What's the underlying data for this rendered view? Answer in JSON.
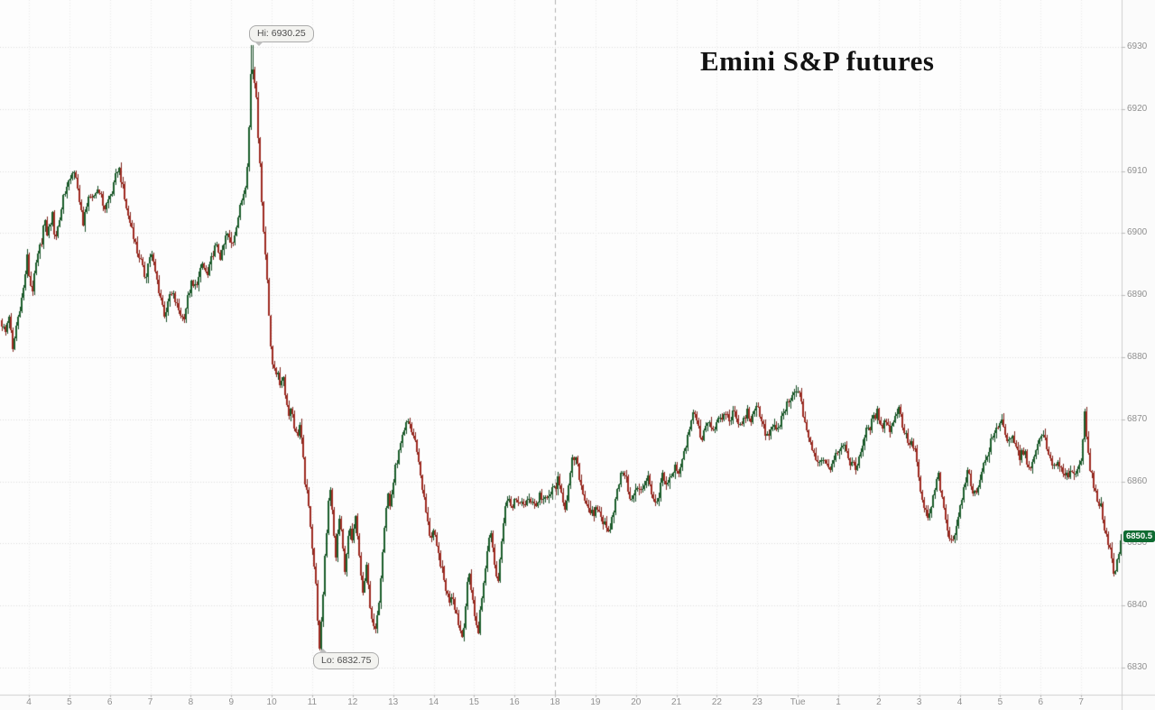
{
  "title": "Emini S&P futures",
  "annotations": {
    "high_label": "Hi: 6930.25",
    "low_label": "Lo: 6832.75",
    "last_price": "6850.5"
  },
  "colors": {
    "up": "#1c5e2c",
    "up_wick": "#174d25",
    "down": "#9e2b22",
    "down_wick": "#7e241c",
    "grid_h": "#dedede",
    "grid_v": "#eaeaea",
    "session_line": "#b3b3b3",
    "axis_line": "#cfcfcf",
    "axis_text": "#8f8f8f",
    "strip_bg": "#fbfbfb",
    "background": "#fdfdfd",
    "badge_bg": "#0e6b31",
    "badge_text": "#ffffff"
  },
  "chart_data": {
    "type": "candlestick",
    "instrument": "Emini S&P futures",
    "title": "Emini S&P futures",
    "high": 6930.25,
    "low": 6832.75,
    "last": 6850.5,
    "ylim": [
      6825,
      6934
    ],
    "y_ticks": [
      6930,
      6920,
      6910,
      6900,
      6890,
      6880,
      6870,
      6860,
      6850,
      6840,
      6830
    ],
    "x_labels": [
      "4",
      "5",
      "6",
      "7",
      "8",
      "9",
      "10",
      "11",
      "12",
      "13",
      "14",
      "15",
      "16",
      "18",
      "19",
      "20",
      "21",
      "22",
      "23",
      "Tue",
      "1",
      "2",
      "3",
      "4",
      "5",
      "6",
      "7"
    ],
    "x_axis_note": "hours; 17:00 skipped (futures session break); dashed line at 18:00 session open; Tue = midnight",
    "grid": "dotted, horizontal every 10 pts, vertical every hour",
    "legend": "none",
    "x_unit_of_price_path": "screen_px",
    "price_path": [
      [
        0,
        6886
      ],
      [
        6,
        6884
      ],
      [
        10,
        6887
      ],
      [
        14,
        6881
      ],
      [
        18,
        6885
      ],
      [
        22,
        6888
      ],
      [
        26,
        6891
      ],
      [
        30,
        6896
      ],
      [
        33,
        6892
      ],
      [
        36,
        6891
      ],
      [
        40,
        6895
      ],
      [
        43,
        6897
      ],
      [
        46,
        6899
      ],
      [
        49,
        6902
      ],
      [
        52,
        6900
      ],
      [
        55,
        6901
      ],
      [
        58,
        6903
      ],
      [
        61,
        6899
      ],
      [
        64,
        6901
      ],
      [
        67,
        6903
      ],
      [
        70,
        6906
      ],
      [
        73,
        6907
      ],
      [
        76,
        6908
      ],
      [
        80,
        6910
      ],
      [
        83,
        6909
      ],
      [
        86,
        6907
      ],
      [
        89,
        6905
      ],
      [
        92,
        6901
      ],
      [
        95,
        6904
      ],
      [
        98,
        6906
      ],
      [
        101,
        6905
      ],
      [
        104,
        6906
      ],
      [
        107,
        6907
      ],
      [
        110,
        6907
      ],
      [
        113,
        6905
      ],
      [
        116,
        6904
      ],
      [
        119,
        6905
      ],
      [
        122,
        6906
      ],
      [
        125,
        6907
      ],
      [
        128,
        6909
      ],
      [
        131,
        6911
      ],
      [
        134,
        6909
      ],
      [
        137,
        6906
      ],
      [
        140,
        6904
      ],
      [
        143,
        6902
      ],
      [
        146,
        6901
      ],
      [
        149,
        6899
      ],
      [
        152,
        6897
      ],
      [
        155,
        6896
      ],
      [
        158,
        6894
      ],
      [
        161,
        6893
      ],
      [
        164,
        6895
      ],
      [
        167,
        6897
      ],
      [
        170,
        6895
      ],
      [
        173,
        6893
      ],
      [
        176,
        6891
      ],
      [
        179,
        6889
      ],
      [
        182,
        6887
      ],
      [
        185,
        6888
      ],
      [
        188,
        6890
      ],
      [
        191,
        6890
      ],
      [
        194,
        6889
      ],
      [
        197,
        6888
      ],
      [
        200,
        6887
      ],
      [
        203,
        6886
      ],
      [
        206,
        6888
      ],
      [
        209,
        6890
      ],
      [
        212,
        6892
      ],
      [
        215,
        6891
      ],
      [
        218,
        6892
      ],
      [
        221,
        6893
      ],
      [
        224,
        6895
      ],
      [
        227,
        6894
      ],
      [
        230,
        6893
      ],
      [
        233,
        6895
      ],
      [
        236,
        6897
      ],
      [
        239,
        6898
      ],
      [
        242,
        6897
      ],
      [
        245,
        6896
      ],
      [
        248,
        6898
      ],
      [
        251,
        6900
      ],
      [
        254,
        6899
      ],
      [
        257,
        6898
      ],
      [
        260,
        6900
      ],
      [
        263,
        6902
      ],
      [
        266,
        6904
      ],
      [
        269,
        6906
      ],
      [
        272,
        6908
      ],
      [
        275,
        6913
      ],
      [
        277,
        6921
      ],
      [
        279,
        6930.25
      ],
      [
        281,
        6923
      ],
      [
        283,
        6926
      ],
      [
        285,
        6919
      ],
      [
        287,
        6913
      ],
      [
        289,
        6908
      ],
      [
        291,
        6903
      ],
      [
        293,
        6898
      ],
      [
        295,
        6895
      ],
      [
        297,
        6890
      ],
      [
        299,
        6884
      ],
      [
        302,
        6879
      ],
      [
        305,
        6877
      ],
      [
        308,
        6878
      ],
      [
        311,
        6875
      ],
      [
        314,
        6877
      ],
      [
        317,
        6873
      ],
      [
        320,
        6871
      ],
      [
        323,
        6872
      ],
      [
        326,
        6869
      ],
      [
        329,
        6867
      ],
      [
        332,
        6869
      ],
      [
        335,
        6865
      ],
      [
        338,
        6860
      ],
      [
        341,
        6857
      ],
      [
        344,
        6853
      ],
      [
        347,
        6848
      ],
      [
        350,
        6843
      ],
      [
        352,
        6838
      ],
      [
        354,
        6832.75
      ],
      [
        356,
        6837
      ],
      [
        358,
        6842
      ],
      [
        360,
        6848
      ],
      [
        362,
        6852
      ],
      [
        364,
        6857
      ],
      [
        366,
        6859
      ],
      [
        368,
        6855
      ],
      [
        370,
        6851
      ],
      [
        372,
        6848
      ],
      [
        374,
        6851
      ],
      [
        376,
        6854
      ],
      [
        378,
        6852
      ],
      [
        380,
        6849
      ],
      [
        382,
        6846
      ],
      [
        384,
        6848
      ],
      [
        386,
        6851
      ],
      [
        388,
        6852
      ],
      [
        390,
        6850
      ],
      [
        392,
        6852
      ],
      [
        394,
        6854
      ],
      [
        396,
        6851
      ],
      [
        398,
        6848
      ],
      [
        400,
        6845
      ],
      [
        402,
        6842
      ],
      [
        404,
        6844
      ],
      [
        406,
        6846
      ],
      [
        408,
        6843
      ],
      [
        410,
        6840
      ],
      [
        412,
        6838
      ],
      [
        415,
        6835
      ],
      [
        418,
        6838
      ],
      [
        420,
        6841
      ],
      [
        422,
        6845
      ],
      [
        424,
        6849
      ],
      [
        426,
        6853
      ],
      [
        428,
        6856
      ],
      [
        430,
        6858
      ],
      [
        432,
        6856
      ],
      [
        434,
        6858
      ],
      [
        436,
        6860
      ],
      [
        438,
        6862
      ],
      [
        441,
        6864
      ],
      [
        444,
        6866
      ],
      [
        447,
        6867
      ],
      [
        450,
        6869
      ],
      [
        453,
        6870
      ],
      [
        456,
        6868
      ],
      [
        459,
        6867
      ],
      [
        462,
        6865
      ],
      [
        465,
        6862
      ],
      [
        468,
        6859
      ],
      [
        471,
        6856
      ],
      [
        474,
        6853
      ],
      [
        477,
        6851
      ],
      [
        480,
        6852
      ],
      [
        483,
        6850
      ],
      [
        486,
        6848
      ],
      [
        489,
        6846
      ],
      [
        492,
        6844
      ],
      [
        495,
        6842
      ],
      [
        498,
        6841
      ],
      [
        501,
        6842
      ],
      [
        504,
        6840
      ],
      [
        507,
        6838
      ],
      [
        510,
        6836
      ],
      [
        512,
        6835
      ],
      [
        514,
        6837
      ],
      [
        516,
        6840
      ],
      [
        518,
        6843
      ],
      [
        520,
        6845
      ],
      [
        522,
        6843
      ],
      [
        524,
        6841
      ],
      [
        526,
        6838
      ],
      [
        528,
        6837
      ],
      [
        530,
        6836
      ],
      [
        532,
        6839
      ],
      [
        534,
        6841
      ],
      [
        536,
        6844
      ],
      [
        538,
        6846
      ],
      [
        540,
        6849
      ],
      [
        542,
        6851
      ],
      [
        544,
        6852
      ],
      [
        546,
        6850
      ],
      [
        548,
        6847
      ],
      [
        550,
        6845
      ],
      [
        552,
        6844
      ],
      [
        554,
        6847
      ],
      [
        556,
        6851
      ],
      [
        558,
        6854
      ],
      [
        560,
        6856
      ],
      [
        563,
        6857
      ],
      [
        566,
        6856
      ],
      [
        570,
        6857
      ],
      [
        574,
        6856
      ],
      [
        578,
        6857
      ],
      [
        582,
        6856
      ],
      [
        586,
        6857
      ],
      [
        590,
        6857
      ],
      [
        594,
        6856
      ],
      [
        598,
        6858
      ],
      [
        602,
        6857
      ],
      [
        606,
        6857
      ],
      [
        610,
        6858
      ],
      [
        614,
        6859
      ],
      [
        618,
        6860
      ],
      [
        622,
        6858
      ],
      [
        626,
        6856
      ],
      [
        630,
        6859
      ],
      [
        634,
        6863
      ],
      [
        637,
        6864
      ],
      [
        640,
        6862
      ],
      [
        643,
        6860
      ],
      [
        646,
        6858
      ],
      [
        649,
        6857
      ],
      [
        652,
        6856
      ],
      [
        655,
        6855
      ],
      [
        658,
        6854
      ],
      [
        661,
        6856
      ],
      [
        664,
        6855
      ],
      [
        667,
        6854
      ],
      [
        670,
        6853
      ],
      [
        673,
        6852
      ],
      [
        676,
        6853
      ],
      [
        679,
        6855
      ],
      [
        682,
        6857
      ],
      [
        685,
        6859
      ],
      [
        688,
        6861
      ],
      [
        691,
        6862
      ],
      [
        694,
        6860
      ],
      [
        697,
        6858
      ],
      [
        700,
        6857
      ],
      [
        703,
        6858
      ],
      [
        706,
        6859
      ],
      [
        709,
        6858
      ],
      [
        712,
        6859
      ],
      [
        715,
        6860
      ],
      [
        718,
        6861
      ],
      [
        721,
        6859
      ],
      [
        724,
        6857
      ],
      [
        727,
        6856
      ],
      [
        730,
        6858
      ],
      [
        733,
        6861
      ],
      [
        736,
        6860
      ],
      [
        739,
        6859
      ],
      [
        742,
        6860
      ],
      [
        745,
        6861
      ],
      [
        748,
        6862
      ],
      [
        751,
        6861
      ],
      [
        754,
        6862
      ],
      [
        757,
        6864
      ],
      [
        760,
        6866
      ],
      [
        763,
        6868
      ],
      [
        766,
        6870
      ],
      [
        769,
        6871
      ],
      [
        772,
        6870
      ],
      [
        775,
        6868
      ],
      [
        778,
        6867
      ],
      [
        781,
        6869
      ],
      [
        784,
        6870
      ],
      [
        787,
        6869
      ],
      [
        790,
        6868
      ],
      [
        793,
        6869
      ],
      [
        796,
        6870
      ],
      [
        800,
        6870
      ],
      [
        804,
        6871
      ],
      [
        808,
        6870
      ],
      [
        812,
        6871
      ],
      [
        816,
        6870
      ],
      [
        820,
        6869
      ],
      [
        824,
        6870
      ],
      [
        828,
        6871
      ],
      [
        832,
        6870
      ],
      [
        836,
        6871
      ],
      [
        840,
        6872
      ],
      [
        844,
        6870
      ],
      [
        848,
        6868
      ],
      [
        852,
        6867
      ],
      [
        856,
        6869
      ],
      [
        860,
        6868
      ],
      [
        864,
        6869
      ],
      [
        868,
        6871
      ],
      [
        872,
        6872
      ],
      [
        876,
        6873
      ],
      [
        880,
        6874
      ],
      [
        884,
        6875
      ],
      [
        887,
        6873
      ],
      [
        890,
        6871
      ],
      [
        893,
        6869
      ],
      [
        896,
        6867
      ],
      [
        900,
        6865
      ],
      [
        904,
        6864
      ],
      [
        908,
        6863
      ],
      [
        912,
        6864
      ],
      [
        916,
        6863
      ],
      [
        920,
        6862
      ],
      [
        924,
        6864
      ],
      [
        928,
        6865
      ],
      [
        932,
        6866
      ],
      [
        936,
        6865
      ],
      [
        940,
        6864
      ],
      [
        944,
        6863
      ],
      [
        948,
        6862
      ],
      [
        952,
        6864
      ],
      [
        956,
        6866
      ],
      [
        960,
        6868
      ],
      [
        964,
        6869
      ],
      [
        968,
        6870
      ],
      [
        972,
        6871
      ],
      [
        975,
        6870
      ],
      [
        978,
        6869
      ],
      [
        981,
        6870
      ],
      [
        984,
        6869
      ],
      [
        987,
        6868
      ],
      [
        990,
        6870
      ],
      [
        993,
        6871
      ],
      [
        996,
        6872
      ],
      [
        999,
        6870
      ],
      [
        1002,
        6868
      ],
      [
        1005,
        6867
      ],
      [
        1008,
        6866
      ],
      [
        1011,
        6866
      ],
      [
        1014,
        6865
      ],
      [
        1017,
        6862
      ],
      [
        1020,
        6858
      ],
      [
        1023,
        6856
      ],
      [
        1026,
        6855
      ],
      [
        1029,
        6854
      ],
      [
        1032,
        6856
      ],
      [
        1035,
        6858
      ],
      [
        1038,
        6860
      ],
      [
        1040,
        6861
      ],
      [
        1043,
        6858
      ],
      [
        1046,
        6855
      ],
      [
        1049,
        6853
      ],
      [
        1052,
        6851
      ],
      [
        1055,
        6850
      ],
      [
        1058,
        6852
      ],
      [
        1061,
        6854
      ],
      [
        1064,
        6856
      ],
      [
        1067,
        6858
      ],
      [
        1070,
        6860
      ],
      [
        1073,
        6862
      ],
      [
        1076,
        6860
      ],
      [
        1079,
        6858
      ],
      [
        1082,
        6858
      ],
      [
        1085,
        6860
      ],
      [
        1088,
        6862
      ],
      [
        1091,
        6863
      ],
      [
        1094,
        6864
      ],
      [
        1097,
        6866
      ],
      [
        1100,
        6867
      ],
      [
        1103,
        6868
      ],
      [
        1106,
        6869
      ],
      [
        1109,
        6870
      ],
      [
        1112,
        6869
      ],
      [
        1115,
        6867
      ],
      [
        1118,
        6866
      ],
      [
        1121,
        6867
      ],
      [
        1124,
        6866
      ],
      [
        1127,
        6865
      ],
      [
        1130,
        6864
      ],
      [
        1133,
        6865
      ],
      [
        1136,
        6864
      ],
      [
        1139,
        6863
      ],
      [
        1142,
        6862
      ],
      [
        1145,
        6863
      ],
      [
        1148,
        6865
      ],
      [
        1151,
        6866
      ],
      [
        1154,
        6868
      ],
      [
        1157,
        6867
      ],
      [
        1160,
        6865
      ],
      [
        1163,
        6864
      ],
      [
        1166,
        6863
      ],
      [
        1169,
        6862
      ],
      [
        1172,
        6863
      ],
      [
        1175,
        6862
      ],
      [
        1178,
        6861
      ],
      [
        1181,
        6862
      ],
      [
        1184,
        6861
      ],
      [
        1187,
        6862
      ],
      [
        1190,
        6861
      ],
      [
        1193,
        6862
      ],
      [
        1196,
        6863
      ],
      [
        1199,
        6864
      ],
      [
        1202,
        6871
      ],
      [
        1205,
        6865
      ],
      [
        1208,
        6862
      ],
      [
        1211,
        6860
      ],
      [
        1214,
        6858
      ],
      [
        1217,
        6857
      ],
      [
        1220,
        6856
      ],
      [
        1223,
        6853
      ],
      [
        1226,
        6851
      ],
      [
        1229,
        6850
      ],
      [
        1232,
        6848
      ],
      [
        1234,
        6846
      ],
      [
        1236,
        6845.5
      ],
      [
        1238,
        6847
      ],
      [
        1240,
        6849
      ],
      [
        1242,
        6850.5
      ]
    ]
  }
}
